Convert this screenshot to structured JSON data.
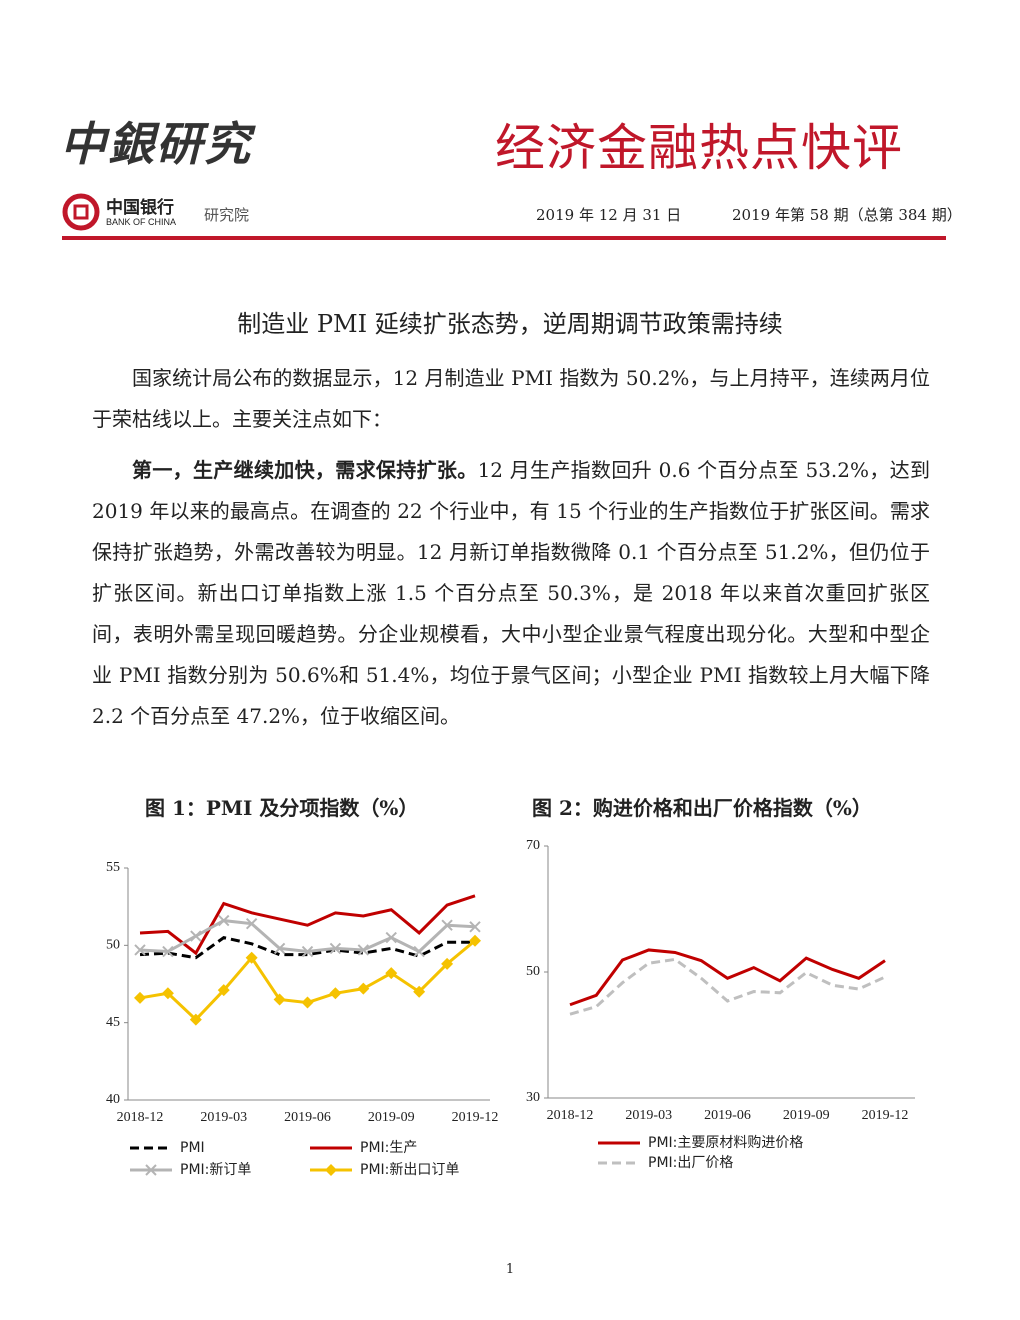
{
  "header": {
    "logo_text": "中銀研究",
    "title": "经济金融热点快评",
    "bank_cn": "中国银行",
    "bank_en": "BANK OF CHINA",
    "institute": "研究院",
    "date": "2019 年 12 月 31 日",
    "issue": "2019 年第 58 期（总第 384 期）"
  },
  "article": {
    "title": "制造业 PMI 延续扩张态势，逆周期调节政策需持续",
    "paragraphs": [
      {
        "text": "国家统计局公布的数据显示，12 月制造业 PMI 指数为 50.2%，与上月持平，连续两月位于荣枯线以上。主要关注点如下："
      },
      {
        "lead": "第一，生产继续加快，需求保持扩张。",
        "text": "12 月生产指数回升 0.6 个百分点至 53.2%，达到 2019 年以来的最高点。在调查的 22 个行业中，有 15 个行业的生产指数位于扩张区间。需求保持扩张趋势，外需改善较为明显。12 月新订单指数微降 0.1 个百分点至 51.2%，但仍位于扩张区间。新出口订单指数上涨 1.5 个百分点至 50.3%，是 2018 年以来首次重回扩张区间，表明外需呈现回暖趋势。分企业规模看，大中小型企业景气程度出现分化。大型和中型企业 PMI 指数分别为 50.6%和 51.4%，均位于景气区间；小型企业 PMI 指数较上月大幅下降 2.2 个百分点至 47.2%，位于收缩区间。"
      }
    ]
  },
  "chart_data": [
    {
      "type": "line",
      "title": "图 1：PMI 及分项指数（%）",
      "categories": [
        "2018-12",
        null,
        null,
        "2019-03",
        null,
        null,
        "2019-06",
        null,
        null,
        "2019-09",
        null,
        null,
        "2019-12"
      ],
      "ylim": [
        40,
        55
      ],
      "yticks": [
        40,
        45,
        50,
        55
      ],
      "legend": "bottom",
      "series": [
        {
          "name": "PMI",
          "color": "#000000",
          "dash": true,
          "values": [
            49.4,
            49.5,
            49.2,
            50.5,
            50.1,
            49.4,
            49.4,
            49.7,
            49.5,
            49.8,
            49.3,
            50.2,
            50.2
          ]
        },
        {
          "name": "PMI:生产",
          "color": "#c00000",
          "values": [
            50.8,
            50.9,
            49.5,
            52.7,
            52.1,
            51.7,
            51.3,
            52.1,
            51.9,
            52.3,
            50.8,
            52.6,
            53.2
          ]
        },
        {
          "name": "PMI:新订单",
          "color": "#b4b4b4",
          "marker": "x",
          "values": [
            49.7,
            49.6,
            50.6,
            51.6,
            51.4,
            49.8,
            49.6,
            49.8,
            49.7,
            50.5,
            49.6,
            51.3,
            51.2
          ]
        },
        {
          "name": "PMI:新出口订单",
          "color": "#f5c200",
          "marker": "diamond",
          "values": [
            46.6,
            46.9,
            45.2,
            47.1,
            49.2,
            46.5,
            46.3,
            46.9,
            47.2,
            48.2,
            47.0,
            48.8,
            50.3
          ]
        }
      ]
    },
    {
      "type": "line",
      "title": "图 2：购进价格和出厂价格指数（%）",
      "categories": [
        "2018-12",
        null,
        null,
        "2019-03",
        null,
        null,
        "2019-06",
        null,
        null,
        "2019-09",
        null,
        null,
        "2019-12"
      ],
      "ylim": [
        30,
        70
      ],
      "yticks": [
        30,
        50,
        70
      ],
      "legend": "bottom",
      "series": [
        {
          "name": "PMI:主要原材料购进价格",
          "color": "#c00000",
          "values": [
            44.8,
            46.3,
            51.9,
            53.5,
            53.1,
            51.8,
            49.0,
            50.7,
            48.6,
            52.2,
            50.4,
            49.0,
            51.8
          ]
        },
        {
          "name": "PMI:出厂价格",
          "color": "#bfbfbf",
          "dash": true,
          "values": [
            43.3,
            44.5,
            48.3,
            51.4,
            52.0,
            49.0,
            45.4,
            46.9,
            46.7,
            49.9,
            47.9,
            47.3,
            49.2
          ]
        }
      ]
    }
  ],
  "footer": {
    "page": "1"
  }
}
